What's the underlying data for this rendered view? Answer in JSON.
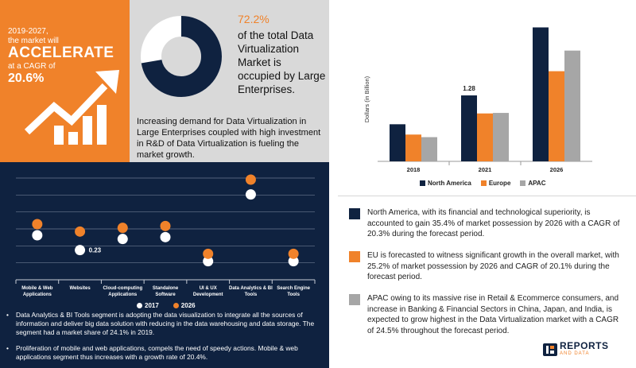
{
  "callout": {
    "line1": "2019-2027,",
    "line2": "the market will",
    "headline": "ACCELERATE",
    "line3": "at a CAGR of",
    "cagr": "20.6%"
  },
  "donut": {
    "percent_label": "72.2%",
    "value": 72.2,
    "text": "of the total Data Virtualization Market is occupied by Large Enterprises.",
    "description": "Increasing demand for Data Virtualization in Large Enterprises coupled with high investment in R&D of Data Virtualization is fueling the market growth."
  },
  "colors": {
    "navy": "#0F2240",
    "orange": "#F0822A",
    "gray": "#A6A6A6",
    "panel_gray": "#D9D9D9"
  },
  "chart_data": [
    {
      "type": "bar",
      "categories": [
        "2018",
        "2021",
        "2026"
      ],
      "ylabel": "Dollars (in Billion)",
      "series": [
        {
          "name": "North America",
          "values": [
            0.72,
            1.28,
            2.6
          ]
        },
        {
          "name": "Europe",
          "values": [
            0.52,
            0.93,
            1.75
          ]
        },
        {
          "name": "APAC",
          "values": [
            0.47,
            0.94,
            2.15
          ]
        }
      ],
      "data_labels": [
        {
          "series": "North America",
          "category": "2021",
          "text": "1.28"
        }
      ],
      "ylim": [
        0,
        2.7
      ],
      "legend": "bottom",
      "grid": false
    },
    {
      "type": "scatter",
      "categories": [
        "Mobile & Web Applications",
        "Websites",
        "Cloud-computing Applications",
        "Standalone Software",
        "UI & UX Development",
        "Data Analytics & BI Tools",
        "Search Engine Tools"
      ],
      "series": [
        {
          "name": "2017",
          "values": [
            0.27,
            0.23,
            0.26,
            0.265,
            0.2,
            0.38,
            0.2
          ]
        },
        {
          "name": "2026",
          "values": [
            0.3,
            0.28,
            0.29,
            0.295,
            0.22,
            0.42,
            0.22
          ]
        }
      ],
      "data_labels": [
        {
          "series": "2017",
          "category": "Websites",
          "text": "0.23"
        }
      ],
      "ylim": [
        0.15,
        0.45
      ],
      "legend": "bottom",
      "grid": true
    }
  ],
  "bar_legend": [
    "North America",
    "Europe",
    "APAC"
  ],
  "dot_legend": [
    "2017",
    "2026"
  ],
  "notes": [
    "North America, with its financial and technological superiority, is accounted to gain 35.4% of market possession by 2026 with a CAGR of 20.3% during the forecast period.",
    "EU is forecasted to witness significant growth in the overall market, with 25.2% of market possession by 2026 and CAGR of 20.1% during the forecast period.",
    "APAC owing to its massive rise in Retail & Ecommerce consumers, and increase in Banking & Financial Sectors in China, Japan, and India, is expected to grow highest in the Data Virtualization market with a CAGR of 24.5% throughout the forecast period."
  ],
  "segment_notes": [
    "Data Analytics & BI Tools segment is adopting the data visualization to integrate all the sources of information and deliver big data solution with reducing in the data warehousing and data storage. The segment had a market share of 24.1% in 2019.",
    "Proliferation of mobile and web applications, compels the need of speedy actions. Mobile & web applications segment thus increases with a growth rate of 20.4%."
  ],
  "brand": {
    "name": "REPORTS",
    "sub": "AND DATA"
  }
}
